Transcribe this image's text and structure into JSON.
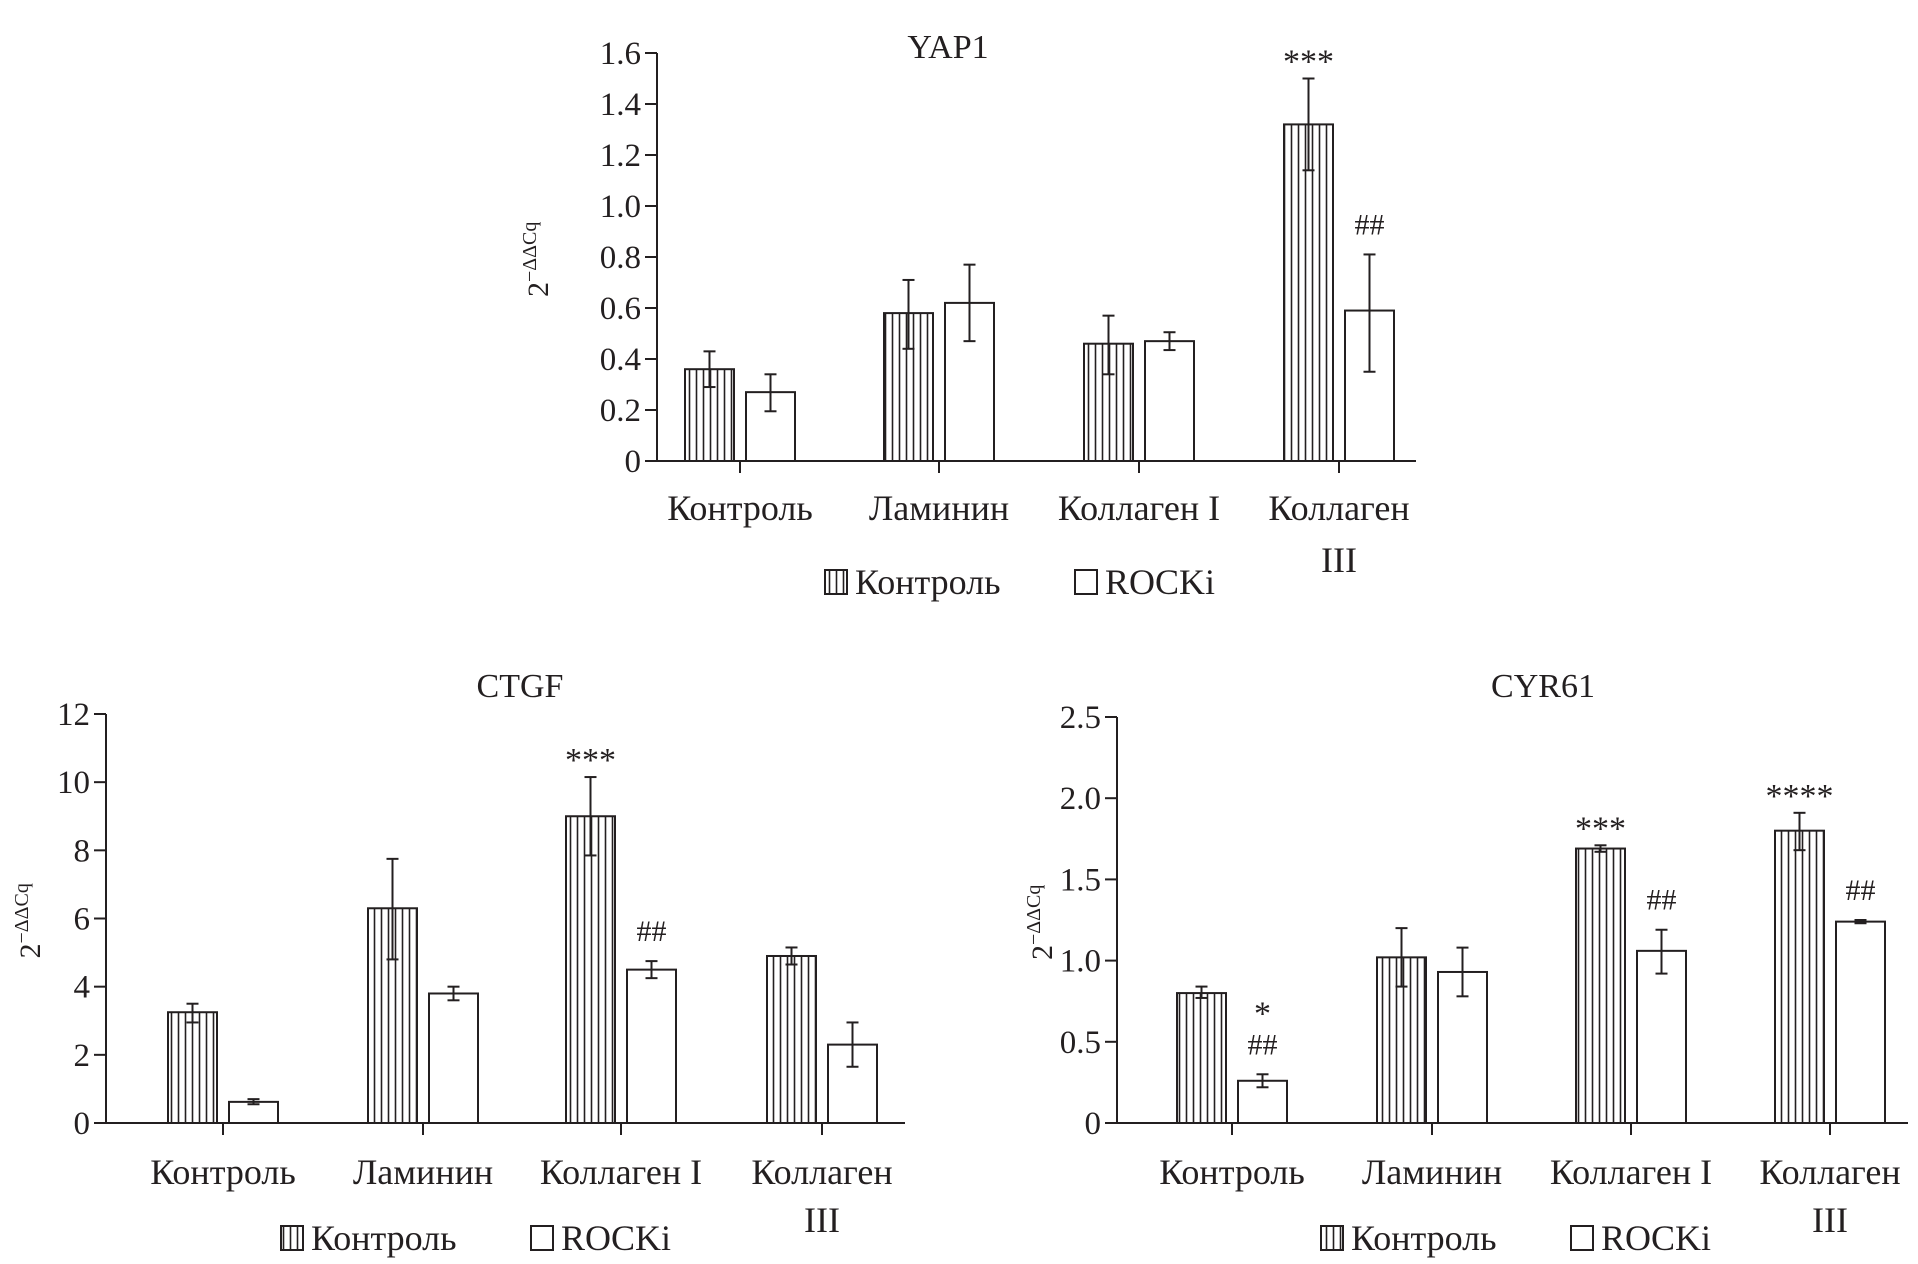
{
  "chart_data": [
    {
      "type": "bar",
      "title": "YAP1",
      "ylabel_base": "2",
      "ylabel_sup": "−ΔΔCq",
      "ylim": [
        0,
        1.6
      ],
      "yticks": [
        0,
        0.2,
        0.4,
        0.6,
        0.8,
        1.0,
        1.2,
        1.4,
        1.6
      ],
      "ytick_labels": [
        "0",
        "0.2",
        "0.4",
        "0.6",
        "0.8",
        "1.0",
        "1.2",
        "1.4",
        "1.6"
      ],
      "categories": [
        "Контроль",
        "Ламинин",
        "Коллаген I",
        [
          "Коллаген",
          "III"
        ]
      ],
      "legend": [
        "Контроль",
        "ROCKi"
      ],
      "legend_placement": "bottom",
      "series": [
        {
          "name": "Контроль",
          "pattern": "vertical-hatch",
          "values": [
            0.36,
            0.58,
            0.46,
            1.32
          ],
          "err_low": [
            0.29,
            0.44,
            0.34,
            1.14
          ],
          "err_high": [
            0.43,
            0.71,
            0.57,
            1.5
          ],
          "annotations": [
            [],
            [],
            [],
            [
              "***"
            ]
          ]
        },
        {
          "name": "ROCKi",
          "pattern": "white",
          "values": [
            0.27,
            0.62,
            0.47,
            0.59
          ],
          "err_low": [
            0.195,
            0.47,
            0.435,
            0.35
          ],
          "err_high": [
            0.34,
            0.77,
            0.505,
            0.81
          ],
          "annotations": [
            [],
            [],
            [],
            [
              "##"
            ]
          ]
        }
      ]
    },
    {
      "type": "bar",
      "title": "CTGF",
      "ylabel_base": "2",
      "ylabel_sup": "−ΔΔCq",
      "ylim": [
        0,
        12
      ],
      "yticks": [
        0,
        2,
        4,
        6,
        8,
        10,
        12
      ],
      "ytick_labels": [
        "0",
        "2",
        "4",
        "6",
        "8",
        "10",
        "12"
      ],
      "categories": [
        "Контроль",
        "Ламинин",
        "Коллаген I",
        [
          "Коллаген",
          "III"
        ]
      ],
      "legend": [
        "Контроль",
        "ROCKi"
      ],
      "legend_placement": "bottom",
      "series": [
        {
          "name": "Контроль",
          "pattern": "vertical-hatch",
          "values": [
            3.25,
            6.3,
            9.0,
            4.9
          ],
          "err_low": [
            2.95,
            4.8,
            7.85,
            4.65
          ],
          "err_high": [
            3.5,
            7.75,
            10.15,
            5.15
          ],
          "annotations": [
            [],
            [],
            [
              "***"
            ],
            []
          ]
        },
        {
          "name": "ROCKi",
          "pattern": "white",
          "values": [
            0.62,
            3.8,
            4.5,
            2.3
          ],
          "err_low": [
            0.55,
            3.6,
            4.25,
            1.65
          ],
          "err_high": [
            0.7,
            4.0,
            4.75,
            2.95
          ],
          "annotations": [
            [],
            [],
            [
              "##"
            ],
            []
          ]
        }
      ]
    },
    {
      "type": "bar",
      "title": "CYR61",
      "ylabel_base": "2",
      "ylabel_sup": "−ΔΔCq",
      "ylim": [
        0,
        2.5
      ],
      "yticks": [
        0,
        0.5,
        1.0,
        1.5,
        2.0,
        2.5
      ],
      "ytick_labels": [
        "0",
        "0.5",
        "1.0",
        "1.5",
        "2.0",
        "2.5"
      ],
      "categories": [
        "Контроль",
        "Ламинин",
        "Коллаген I",
        [
          "Коллаген",
          "III"
        ]
      ],
      "legend": [
        "Контроль",
        "ROCKi"
      ],
      "legend_placement": "bottom",
      "series": [
        {
          "name": "Контроль",
          "pattern": "vertical-hatch",
          "values": [
            0.8,
            1.02,
            1.69,
            1.8
          ],
          "err_low": [
            0.77,
            0.84,
            1.67,
            1.68
          ],
          "err_high": [
            0.84,
            1.2,
            1.71,
            1.91
          ],
          "annotations": [
            [],
            [],
            [
              "***"
            ],
            [
              "****"
            ]
          ]
        },
        {
          "name": "ROCKi",
          "pattern": "white",
          "values": [
            0.26,
            0.93,
            1.06,
            1.24
          ],
          "err_low": [
            0.22,
            0.78,
            0.92,
            1.23
          ],
          "err_high": [
            0.3,
            1.08,
            1.19,
            1.25
          ],
          "annotations": [
            [
              "##",
              "*"
            ],
            [],
            [
              "##"
            ],
            [
              "##"
            ]
          ]
        }
      ]
    }
  ]
}
